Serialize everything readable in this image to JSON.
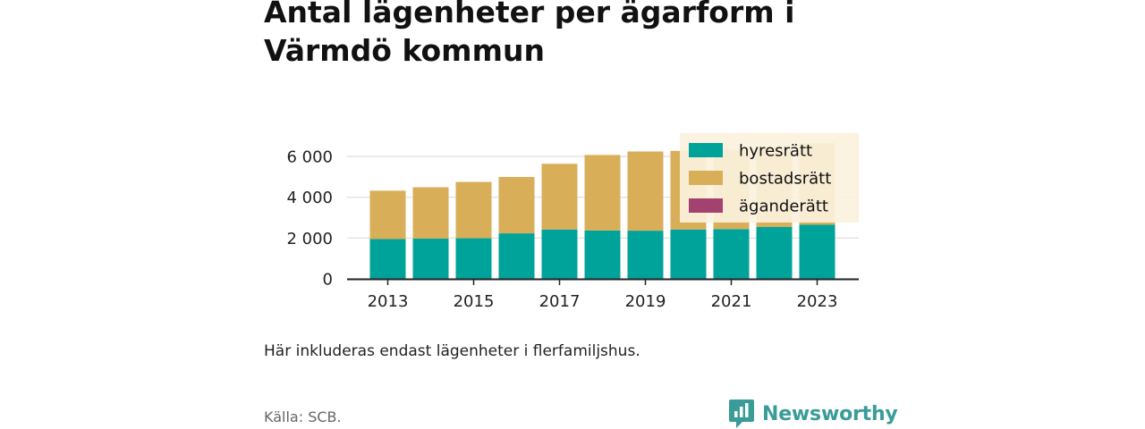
{
  "title": "Antal lägenheter per ägarform i Värmdö kommun",
  "note": "Här inkluderas endast lägenheter i flerfamiljshus.",
  "source": "Källa: SCB.",
  "brand": {
    "name": "Newsworthy",
    "icon": "newsworthy-logo-icon",
    "color": "#3a9c98"
  },
  "colors": {
    "hyresratt": "#00a39a",
    "bostadsratt": "#d9ae59",
    "aganderatt": "#a3426f",
    "grid": "#dddddd",
    "legend_bg": "#fbf1dd"
  },
  "chart_data": {
    "type": "bar",
    "stacked": true,
    "categories": [
      "2013",
      "2014",
      "2015",
      "2016",
      "2017",
      "2018",
      "2019",
      "2020",
      "2021",
      "2022",
      "2023"
    ],
    "xtick_labels": [
      "2013",
      "2015",
      "2017",
      "2019",
      "2021",
      "2023"
    ],
    "ytick_labels": [
      "0",
      "2 000",
      "4 000",
      "6 000"
    ],
    "ylim": [
      0,
      6800
    ],
    "grid": true,
    "legend_position": "top-right",
    "series": [
      {
        "name": "hyresrätt",
        "color": "#00a39a",
        "values": [
          1950,
          1970,
          1990,
          2230,
          2420,
          2370,
          2360,
          2420,
          2440,
          2540,
          2650
        ]
      },
      {
        "name": "bostadsrätt",
        "color": "#d9ae59",
        "values": [
          2370,
          2520,
          2760,
          2760,
          3220,
          3700,
          3880,
          3850,
          3880,
          3900,
          4000
        ]
      },
      {
        "name": "äganderätt",
        "color": "#a3426f",
        "values": [
          0,
          0,
          0,
          0,
          0,
          0,
          0,
          0,
          0,
          0,
          0
        ]
      }
    ]
  }
}
